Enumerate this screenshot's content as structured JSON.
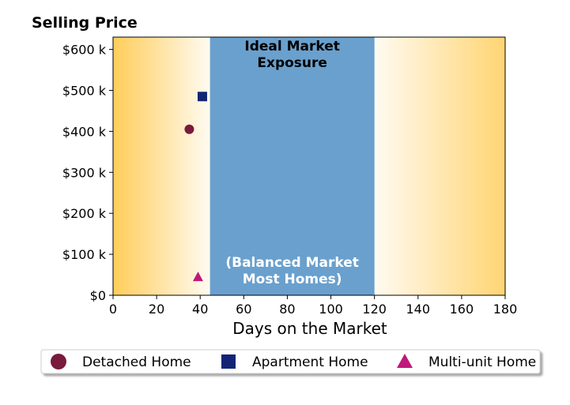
{
  "chart_data": {
    "type": "scatter",
    "title": "Selling Price",
    "xlabel": "Days on the Market",
    "ylabel": "",
    "xlim": [
      0,
      180
    ],
    "ylim": [
      0,
      630000
    ],
    "x_ticks": [
      0,
      20,
      40,
      60,
      80,
      100,
      120,
      140,
      160,
      180
    ],
    "x_tick_labels": [
      "0",
      "20",
      "40",
      "60",
      "80",
      "100",
      "120",
      "140",
      "160",
      "180"
    ],
    "y_ticks": [
      0,
      100000,
      200000,
      300000,
      400000,
      500000,
      600000
    ],
    "y_tick_labels": [
      "$0",
      "$100 k",
      "$200 k",
      "$300 k",
      "$400 k",
      "$500 k",
      "$600 k"
    ],
    "grid": false,
    "band": {
      "x_start": 44.5,
      "x_end": 120,
      "color": "#6aa0cd",
      "top_label_line1": "Ideal Market",
      "top_label_line2": "Exposure",
      "bottom_label_line1": "(Balanced Market",
      "bottom_label_line2": "Most Homes)"
    },
    "background_gradient_color": "#ffcd5a",
    "series": [
      {
        "name": "Detached Home",
        "marker": "circle",
        "color": "#7a1a3c",
        "points": [
          {
            "x": 35,
            "y": 405000
          }
        ]
      },
      {
        "name": "Apartment Home",
        "marker": "square",
        "color": "#142475",
        "points": [
          {
            "x": 41,
            "y": 485000
          }
        ]
      },
      {
        "name": "Multi-unit Home",
        "marker": "triangle",
        "color": "#c0187a",
        "points": [
          {
            "x": 39,
            "y": 45000
          }
        ]
      }
    ],
    "legend_position": "bottom"
  }
}
